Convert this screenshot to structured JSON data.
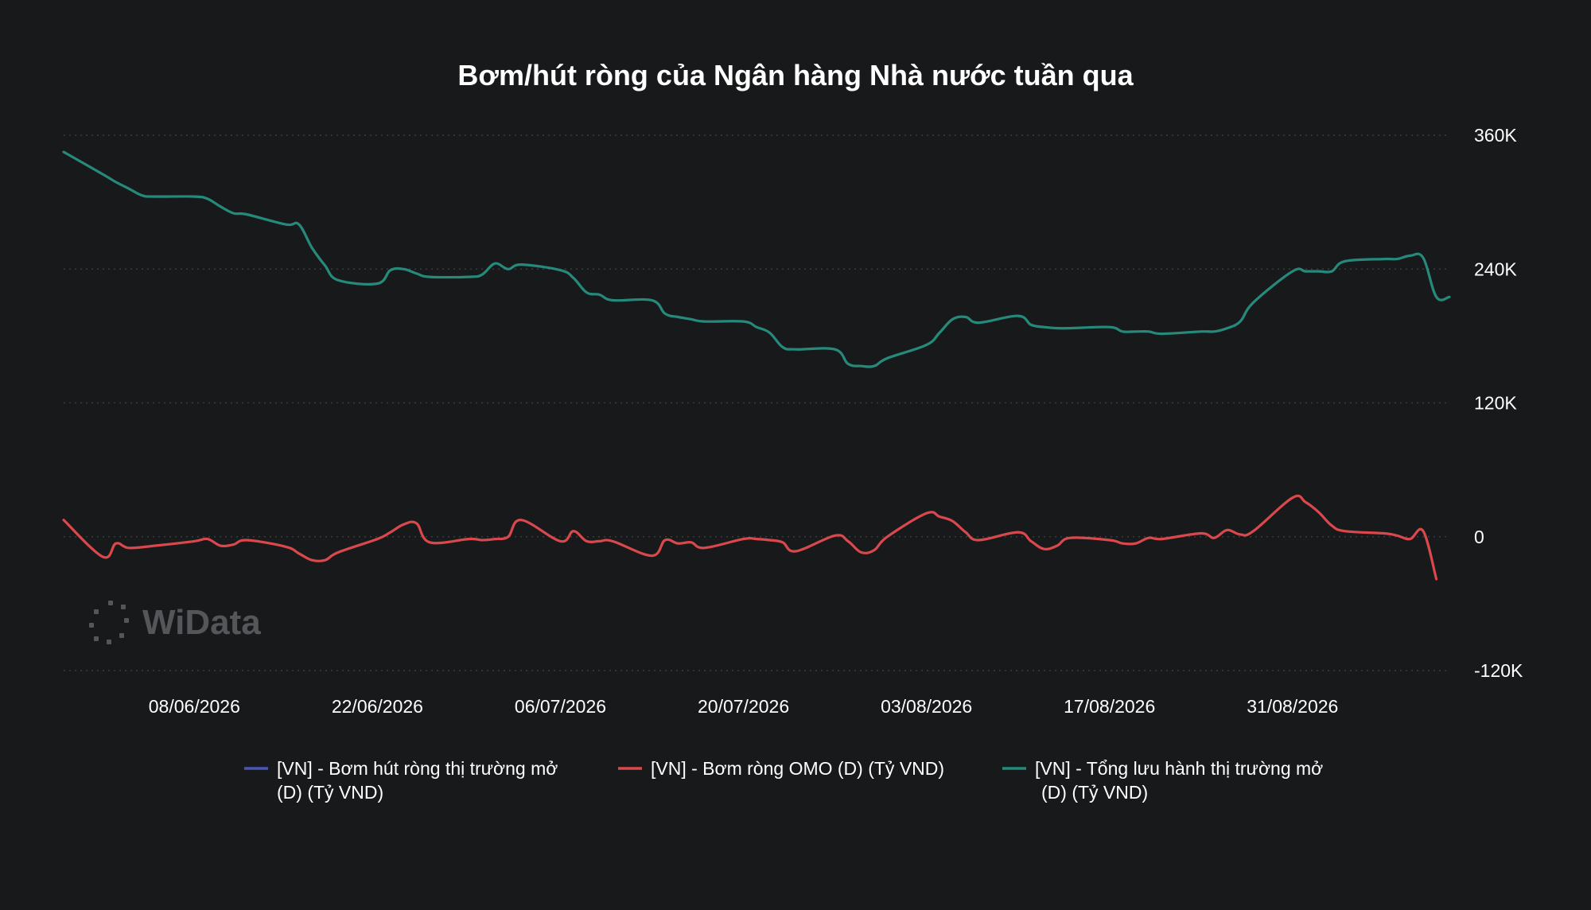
{
  "chart_data": {
    "type": "line",
    "title": "Bơm/hút ròng của Ngân hàng Nhà nước tuần qua",
    "xlabel": "",
    "ylabel": "",
    "ylim": [
      -120000,
      360000
    ],
    "y_ticks": [
      {
        "value": 360000,
        "label": "360K"
      },
      {
        "value": 240000,
        "label": "240K"
      },
      {
        "value": 120000,
        "label": "120K"
      },
      {
        "value": 0,
        "label": "0"
      },
      {
        "value": -120000,
        "label": "-120K"
      }
    ],
    "x_range": [
      "2026-05-29",
      "2026-09-12"
    ],
    "x_ticks": [
      {
        "date": "2026-06-08",
        "label": "08/06/2026"
      },
      {
        "date": "2026-06-22",
        "label": "22/06/2026"
      },
      {
        "date": "2026-07-06",
        "label": "06/07/2026"
      },
      {
        "date": "2026-07-20",
        "label": "20/07/2026"
      },
      {
        "date": "2026-08-03",
        "label": "03/08/2026"
      },
      {
        "date": "2026-08-17",
        "label": "17/08/2026"
      },
      {
        "date": "2026-08-31",
        "label": "31/08/2026"
      }
    ],
    "grid": true,
    "legend_position": "bottom",
    "series": [
      {
        "name": "[VN] - Bơm hút ròng thị trường mở (D) (Tỷ VND)",
        "legend_lines": [
          "[VN] - Bơm hút ròng thị trường mở",
          "(D) (Tỷ VND)"
        ],
        "color": "#4b55b3",
        "points": []
      },
      {
        "name": "[VN] - Bơm ròng OMO (D) (Tỷ VND)",
        "legend_lines": [
          "[VN] - Bơm ròng OMO (D) (Tỷ VND)"
        ],
        "color": "#d9484d",
        "points": [
          [
            "2026-05-29",
            15000
          ],
          [
            "2026-06-01",
            -18000
          ],
          [
            "2026-06-02",
            -6000
          ],
          [
            "2026-06-03",
            -10000
          ],
          [
            "2026-06-05",
            -8000
          ],
          [
            "2026-06-08",
            -4000
          ],
          [
            "2026-06-09",
            -2000
          ],
          [
            "2026-06-10",
            -8000
          ],
          [
            "2026-06-11",
            -7000
          ],
          [
            "2026-06-12",
            -3000
          ],
          [
            "2026-06-15",
            -9000
          ],
          [
            "2026-06-16",
            -15000
          ],
          [
            "2026-06-17",
            -21000
          ],
          [
            "2026-06-18",
            -21000
          ],
          [
            "2026-06-19",
            -14000
          ],
          [
            "2026-06-22",
            -2000
          ],
          [
            "2026-06-23",
            4000
          ],
          [
            "2026-06-24",
            11000
          ],
          [
            "2026-06-25",
            12000
          ],
          [
            "2026-06-26",
            -5000
          ],
          [
            "2026-06-29",
            -2000
          ],
          [
            "2026-06-30",
            -3000
          ],
          [
            "2026-07-01",
            -2000
          ],
          [
            "2026-07-02",
            0
          ],
          [
            "2026-07-03",
            15000
          ],
          [
            "2026-07-06",
            -4000
          ],
          [
            "2026-07-07",
            5000
          ],
          [
            "2026-07-08",
            -4000
          ],
          [
            "2026-07-09",
            -4000
          ],
          [
            "2026-07-10",
            -4000
          ],
          [
            "2026-07-13",
            -17000
          ],
          [
            "2026-07-14",
            -3000
          ],
          [
            "2026-07-15",
            -6000
          ],
          [
            "2026-07-16",
            -5000
          ],
          [
            "2026-07-17",
            -10000
          ],
          [
            "2026-07-20",
            -2000
          ],
          [
            "2026-07-21",
            -2000
          ],
          [
            "2026-07-22",
            -3000
          ],
          [
            "2026-07-23",
            -5000
          ],
          [
            "2026-07-24",
            -13000
          ],
          [
            "2026-07-27",
            1000
          ],
          [
            "2026-07-28",
            -4000
          ],
          [
            "2026-07-29",
            -14000
          ],
          [
            "2026-07-30",
            -12000
          ],
          [
            "2026-07-31",
            0
          ],
          [
            "2026-08-03",
            21000
          ],
          [
            "2026-08-04",
            18000
          ],
          [
            "2026-08-05",
            14000
          ],
          [
            "2026-08-06",
            4000
          ],
          [
            "2026-08-07",
            -3000
          ],
          [
            "2026-08-10",
            4000
          ],
          [
            "2026-08-11",
            -4000
          ],
          [
            "2026-08-12",
            -11000
          ],
          [
            "2026-08-13",
            -8000
          ],
          [
            "2026-08-14",
            -1000
          ],
          [
            "2026-08-17",
            -3000
          ],
          [
            "2026-08-18",
            -6000
          ],
          [
            "2026-08-19",
            -6000
          ],
          [
            "2026-08-20",
            -1000
          ],
          [
            "2026-08-21",
            -2000
          ],
          [
            "2026-08-24",
            3000
          ],
          [
            "2026-08-25",
            -1000
          ],
          [
            "2026-08-26",
            6000
          ],
          [
            "2026-08-27",
            2000
          ],
          [
            "2026-08-28",
            5000
          ],
          [
            "2026-08-31",
            35000
          ],
          [
            "2026-09-01",
            31000
          ],
          [
            "2026-09-02",
            22000
          ],
          [
            "2026-09-03",
            10000
          ],
          [
            "2026-09-04",
            5000
          ],
          [
            "2026-09-07",
            3000
          ],
          [
            "2026-09-08",
            1000
          ],
          [
            "2026-09-09",
            -2000
          ],
          [
            "2026-09-10",
            5000
          ],
          [
            "2026-09-11",
            -38000
          ]
        ]
      },
      {
        "name": "[VN] - Tổng lưu hành thị trường mở (D) (Tỷ VND)",
        "legend_lines": [
          "[VN] - Tổng lưu hành thị trường mở",
          "(D) (Tỷ VND)"
        ],
        "color": "#268a7b",
        "points": [
          [
            "2026-05-29",
            345000
          ],
          [
            "2026-06-01",
            325000
          ],
          [
            "2026-06-02",
            318000
          ],
          [
            "2026-06-03",
            312000
          ],
          [
            "2026-06-04",
            306000
          ],
          [
            "2026-06-05",
            305000
          ],
          [
            "2026-06-08",
            305000
          ],
          [
            "2026-06-09",
            303000
          ],
          [
            "2026-06-10",
            296000
          ],
          [
            "2026-06-11",
            290000
          ],
          [
            "2026-06-12",
            289000
          ],
          [
            "2026-06-15",
            280000
          ],
          [
            "2026-06-16",
            280000
          ],
          [
            "2026-06-17",
            259000
          ],
          [
            "2026-06-18",
            243000
          ],
          [
            "2026-06-19",
            230000
          ],
          [
            "2026-06-22",
            227000
          ],
          [
            "2026-06-23",
            239000
          ],
          [
            "2026-06-24",
            240000
          ],
          [
            "2026-06-25",
            236000
          ],
          [
            "2026-06-26",
            233000
          ],
          [
            "2026-06-29",
            233000
          ],
          [
            "2026-06-30",
            235000
          ],
          [
            "2026-07-01",
            245000
          ],
          [
            "2026-07-02",
            240000
          ],
          [
            "2026-07-03",
            244000
          ],
          [
            "2026-07-06",
            239000
          ],
          [
            "2026-07-07",
            232000
          ],
          [
            "2026-07-08",
            219000
          ],
          [
            "2026-07-09",
            217000
          ],
          [
            "2026-07-10",
            212000
          ],
          [
            "2026-07-13",
            212000
          ],
          [
            "2026-07-14",
            200000
          ],
          [
            "2026-07-15",
            197000
          ],
          [
            "2026-07-16",
            195000
          ],
          [
            "2026-07-17",
            193000
          ],
          [
            "2026-07-20",
            193000
          ],
          [
            "2026-07-21",
            188000
          ],
          [
            "2026-07-22",
            183000
          ],
          [
            "2026-07-23",
            170000
          ],
          [
            "2026-07-24",
            168000
          ],
          [
            "2026-07-27",
            168000
          ],
          [
            "2026-07-28",
            155000
          ],
          [
            "2026-07-29",
            153000
          ],
          [
            "2026-07-30",
            153000
          ],
          [
            "2026-07-31",
            160000
          ],
          [
            "2026-08-03",
            172000
          ],
          [
            "2026-08-04",
            183000
          ],
          [
            "2026-08-05",
            195000
          ],
          [
            "2026-08-06",
            197000
          ],
          [
            "2026-08-07",
            192000
          ],
          [
            "2026-08-10",
            198000
          ],
          [
            "2026-08-11",
            190000
          ],
          [
            "2026-08-12",
            188000
          ],
          [
            "2026-08-13",
            187000
          ],
          [
            "2026-08-14",
            187000
          ],
          [
            "2026-08-17",
            188000
          ],
          [
            "2026-08-18",
            184000
          ],
          [
            "2026-08-19",
            184000
          ],
          [
            "2026-08-20",
            184000
          ],
          [
            "2026-08-21",
            182000
          ],
          [
            "2026-08-24",
            184000
          ],
          [
            "2026-08-25",
            184000
          ],
          [
            "2026-08-26",
            187000
          ],
          [
            "2026-08-27",
            193000
          ],
          [
            "2026-08-28",
            210000
          ],
          [
            "2026-08-31",
            238000
          ],
          [
            "2026-09-01",
            238000
          ],
          [
            "2026-09-02",
            238000
          ],
          [
            "2026-09-03",
            238000
          ],
          [
            "2026-09-04",
            247000
          ],
          [
            "2026-09-07",
            249000
          ],
          [
            "2026-09-08",
            249000
          ],
          [
            "2026-09-09",
            252000
          ],
          [
            "2026-09-10",
            250000
          ],
          [
            "2026-09-11",
            215000
          ],
          [
            "2026-09-12",
            215000
          ]
        ]
      }
    ]
  },
  "watermark": {
    "text": "WiData"
  }
}
